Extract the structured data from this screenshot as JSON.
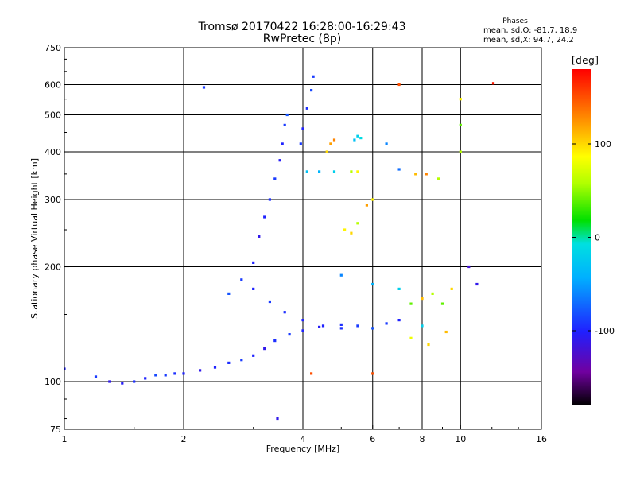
{
  "header": {
    "title_line1": "Tromsø 20170422 16:28:00-16:29:43",
    "title_line2": "RwPretec (8p)"
  },
  "phases_box": {
    "title": "Phases",
    "o_line": "mean, sd,O: -81.7, 18.9",
    "x_line": "mean, sd,X:  94.7, 24.2"
  },
  "colorbar": {
    "label": "[deg]",
    "range": [
      -180,
      180
    ],
    "ticks": [
      "100",
      "0",
      "-100"
    ],
    "tick_values": [
      100,
      0,
      -100
    ]
  },
  "chart_data": {
    "type": "scatter",
    "xlabel": "Frequency [MHz]",
    "ylabel": "Stationary phase Virtual Height [km]",
    "x_scale": "log",
    "y_scale": "log",
    "xlim": [
      1,
      16
    ],
    "ylim": [
      75,
      750
    ],
    "grid": true,
    "x_ticks": [
      1,
      2,
      4,
      6,
      8,
      10,
      16
    ],
    "x_tick_labels": [
      "1",
      "2",
      "4",
      "6",
      "8",
      "10",
      "16"
    ],
    "y_ticks": [
      75,
      100,
      200,
      300,
      400,
      500,
      600,
      750
    ],
    "y_tick_labels": [
      "75",
      "100",
      "200",
      "300",
      "400",
      "500",
      "600",
      "750"
    ],
    "color_by": "phase [deg]",
    "series": [
      {
        "values": [
          [
            1.0,
            108,
            -100
          ],
          [
            1.2,
            103,
            -90
          ],
          [
            1.3,
            100,
            -110
          ],
          [
            1.4,
            99,
            -105
          ],
          [
            1.5,
            100,
            -95
          ],
          [
            1.6,
            102,
            -100
          ],
          [
            1.7,
            104,
            -85
          ],
          [
            1.8,
            104,
            -90
          ],
          [
            1.9,
            105,
            -95
          ],
          [
            2.0,
            105,
            -100
          ],
          [
            2.2,
            107,
            -110
          ],
          [
            2.4,
            109,
            -100
          ],
          [
            2.6,
            112,
            -95
          ],
          [
            2.8,
            114,
            -90
          ],
          [
            3.0,
            117,
            -100
          ],
          [
            3.2,
            122,
            -110
          ],
          [
            3.4,
            128,
            -95
          ],
          [
            3.7,
            133,
            -90
          ],
          [
            4.0,
            136,
            -100
          ],
          [
            4.4,
            139,
            -105
          ],
          [
            5.0,
            141,
            -95
          ],
          [
            5.5,
            140,
            -90
          ],
          [
            6.0,
            138,
            -80
          ],
          [
            6.5,
            142,
            -90
          ],
          [
            7.0,
            145,
            -100
          ]
        ]
      },
      {
        "values": [
          [
            2.6,
            170,
            -80
          ],
          [
            2.8,
            185,
            -90
          ],
          [
            3.0,
            205,
            -100
          ],
          [
            3.1,
            240,
            -110
          ],
          [
            3.2,
            270,
            -100
          ],
          [
            3.3,
            300,
            -95
          ],
          [
            3.4,
            340,
            -90
          ],
          [
            3.5,
            380,
            -105
          ],
          [
            3.55,
            420,
            -100
          ],
          [
            3.6,
            470,
            -90
          ],
          [
            3.65,
            500,
            -80
          ]
        ]
      },
      {
        "values": [
          [
            3.0,
            175,
            -100
          ],
          [
            3.3,
            162,
            -90
          ],
          [
            3.6,
            152,
            -95
          ],
          [
            4.0,
            145,
            -100
          ],
          [
            4.5,
            140,
            -100
          ],
          [
            5.0,
            138,
            -95
          ]
        ]
      },
      {
        "values": [
          [
            3.95,
            420,
            -90
          ],
          [
            4.0,
            460,
            -100
          ],
          [
            4.1,
            520,
            -95
          ],
          [
            4.2,
            580,
            -85
          ],
          [
            4.25,
            630,
            -90
          ]
        ]
      },
      {
        "values": [
          [
            4.1,
            355,
            -30
          ],
          [
            4.4,
            355,
            -40
          ],
          [
            4.8,
            355,
            -20
          ],
          [
            5.3,
            355,
            60
          ],
          [
            5.5,
            355,
            90
          ]
        ]
      },
      {
        "values": [
          [
            4.6,
            400,
            100
          ],
          [
            4.7,
            420,
            120
          ],
          [
            4.8,
            430,
            130
          ],
          [
            5.1,
            250,
            90
          ],
          [
            5.3,
            245,
            100
          ],
          [
            5.5,
            260,
            60
          ],
          [
            5.8,
            290,
            120
          ],
          [
            6.0,
            300,
            90
          ]
        ]
      },
      {
        "values": [
          [
            5.4,
            430,
            -30
          ],
          [
            5.5,
            440,
            -20
          ],
          [
            5.6,
            435,
            -10
          ],
          [
            6.5,
            420,
            -60
          ],
          [
            7.0,
            360,
            -70
          ],
          [
            7.7,
            350,
            110
          ],
          [
            8.2,
            350,
            130
          ],
          [
            8.8,
            340,
            60
          ]
        ]
      },
      {
        "values": [
          [
            5.0,
            190,
            -60
          ],
          [
            6.0,
            180,
            -40
          ],
          [
            7.0,
            175,
            -20
          ],
          [
            7.5,
            160,
            40
          ],
          [
            8.0,
            165,
            110
          ],
          [
            8.5,
            170,
            60
          ],
          [
            9.0,
            160,
            40
          ],
          [
            9.5,
            175,
            100
          ],
          [
            9.2,
            135,
            110
          ],
          [
            8.3,
            125,
            100
          ],
          [
            7.5,
            130,
            80
          ],
          [
            8.0,
            140,
            -20
          ]
        ]
      },
      {
        "values": [
          [
            7.0,
            600,
            150
          ],
          [
            12.1,
            605,
            170
          ],
          [
            10.5,
            200,
            -120
          ],
          [
            11.0,
            180,
            -110
          ],
          [
            2.25,
            590,
            -90
          ],
          [
            10.0,
            470,
            40
          ],
          [
            10.0,
            550,
            90
          ],
          [
            10.0,
            400,
            60
          ],
          [
            4.2,
            105,
            150
          ],
          [
            6.0,
            105,
            150
          ],
          [
            3.45,
            80,
            -110
          ]
        ]
      }
    ]
  }
}
